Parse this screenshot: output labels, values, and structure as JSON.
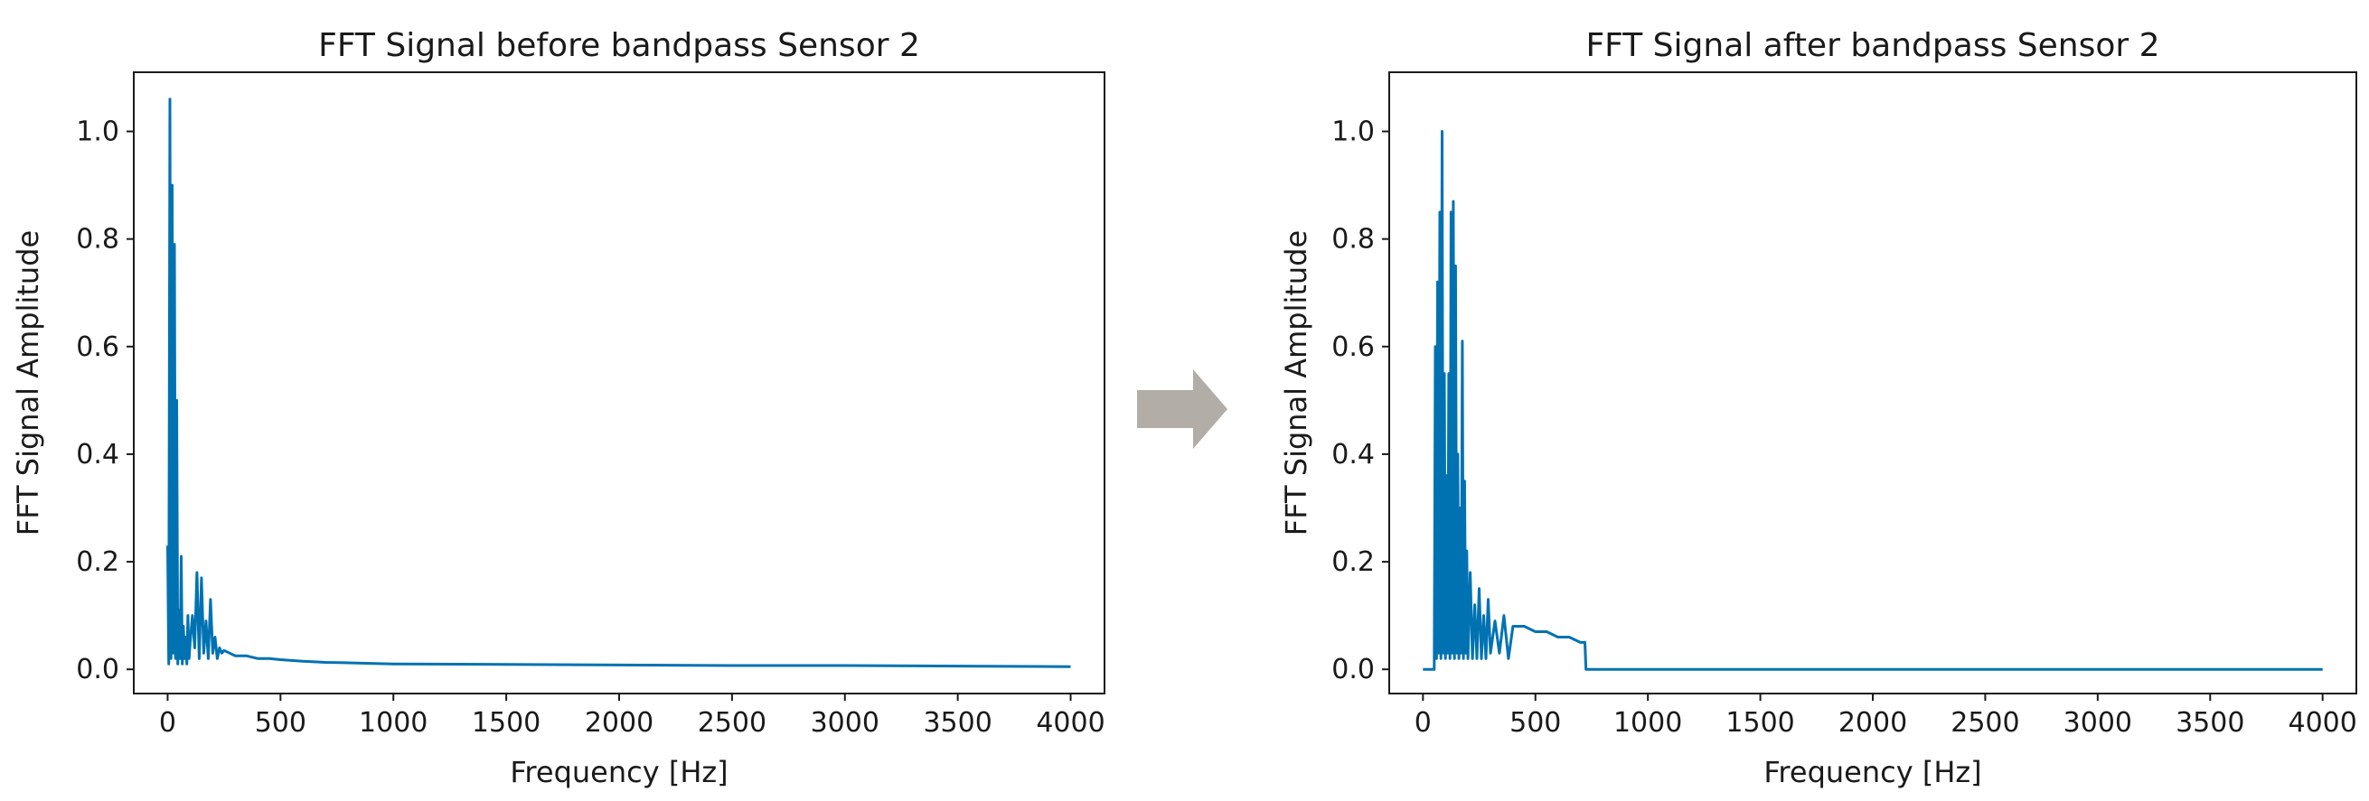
{
  "colors": {
    "series": "#0072b2",
    "axis": "#1a1a1a",
    "arrow": "#b3ada8",
    "background": "#ffffff"
  },
  "arrow_icon": "right-arrow-icon",
  "chart_data": [
    {
      "type": "line",
      "title": "FFT Signal before bandpass Sensor 2",
      "xlabel": "Frequency [Hz]",
      "ylabel": "FFT Signal Amplitude",
      "xlim": [
        -150,
        4150
      ],
      "ylim": [
        -0.045,
        1.11
      ],
      "xticks": [
        0,
        500,
        1000,
        1500,
        2000,
        2500,
        3000,
        3500,
        4000
      ],
      "xtick_labels": [
        "0",
        "500",
        "1000",
        "1500",
        "2000",
        "2500",
        "3000",
        "3500",
        "4000"
      ],
      "yticks": [
        0.0,
        0.2,
        0.4,
        0.6,
        0.8,
        1.0
      ],
      "ytick_labels": [
        "0.0",
        "0.2",
        "0.4",
        "0.6",
        "0.8",
        "1.0"
      ],
      "grid": false,
      "series": [
        {
          "x": [
            0,
            5,
            10,
            15,
            20,
            25,
            30,
            35,
            40,
            45,
            50,
            55,
            60,
            65,
            70,
            75,
            80,
            85,
            90,
            95,
            100,
            110,
            120,
            130,
            140,
            150,
            160,
            170,
            180,
            190,
            200,
            210,
            220,
            230,
            240,
            250,
            275,
            300,
            350,
            400,
            450,
            500,
            600,
            700,
            800,
            1000,
            1500,
            2000,
            2500,
            3000,
            3500,
            4000
          ],
          "y": [
            0.23,
            0.01,
            1.06,
            0.02,
            0.9,
            0.03,
            0.79,
            0.02,
            0.5,
            0.01,
            0.11,
            0.02,
            0.21,
            0.01,
            0.08,
            0.02,
            0.06,
            0.01,
            0.1,
            0.02,
            0.05,
            0.1,
            0.04,
            0.18,
            0.02,
            0.17,
            0.03,
            0.09,
            0.02,
            0.13,
            0.03,
            0.06,
            0.02,
            0.04,
            0.03,
            0.035,
            0.03,
            0.025,
            0.025,
            0.02,
            0.02,
            0.018,
            0.015,
            0.013,
            0.012,
            0.01,
            0.009,
            0.008,
            0.007,
            0.007,
            0.006,
            0.005
          ]
        }
      ]
    },
    {
      "type": "line",
      "title": "FFT Signal after bandpass Sensor 2",
      "xlabel": "Frequency [Hz]",
      "ylabel": "FFT Signal Amplitude",
      "xlim": [
        -150,
        4150
      ],
      "ylim": [
        -0.045,
        1.11
      ],
      "xticks": [
        0,
        500,
        1000,
        1500,
        2000,
        2500,
        3000,
        3500,
        4000
      ],
      "xtick_labels": [
        "0",
        "500",
        "1000",
        "1500",
        "2000",
        "2500",
        "3000",
        "3500",
        "4000"
      ],
      "yticks": [
        0.0,
        0.2,
        0.4,
        0.6,
        0.8,
        1.0
      ],
      "ytick_labels": [
        "0.0",
        "0.2",
        "0.4",
        "0.6",
        "0.8",
        "1.0"
      ],
      "grid": false,
      "series": [
        {
          "x": [
            0,
            50,
            55,
            60,
            65,
            70,
            75,
            80,
            85,
            90,
            95,
            100,
            105,
            110,
            115,
            120,
            125,
            130,
            135,
            140,
            145,
            150,
            155,
            160,
            165,
            170,
            175,
            180,
            185,
            190,
            195,
            200,
            210,
            220,
            230,
            240,
            250,
            260,
            270,
            280,
            290,
            300,
            320,
            340,
            360,
            380,
            400,
            450,
            500,
            550,
            600,
            650,
            700,
            720,
            725,
            4000
          ],
          "y": [
            0.0,
            0.0,
            0.6,
            0.02,
            0.72,
            0.03,
            0.85,
            0.02,
            1.0,
            0.03,
            0.55,
            0.02,
            0.36,
            0.03,
            0.55,
            0.02,
            0.85,
            0.03,
            0.87,
            0.02,
            0.75,
            0.03,
            0.4,
            0.02,
            0.3,
            0.03,
            0.61,
            0.02,
            0.35,
            0.03,
            0.22,
            0.02,
            0.18,
            0.02,
            0.12,
            0.02,
            0.15,
            0.02,
            0.1,
            0.02,
            0.13,
            0.03,
            0.09,
            0.03,
            0.1,
            0.02,
            0.08,
            0.08,
            0.07,
            0.07,
            0.06,
            0.06,
            0.05,
            0.05,
            0.0,
            0.0
          ]
        }
      ]
    }
  ]
}
